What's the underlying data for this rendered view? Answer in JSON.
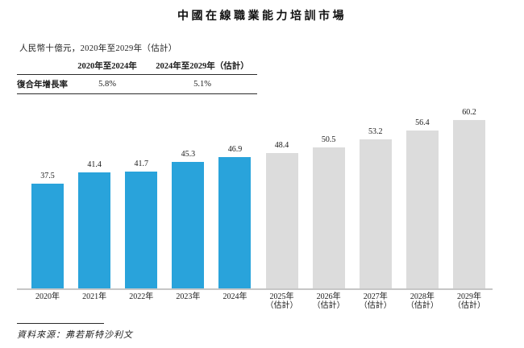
{
  "chart_data": {
    "type": "bar",
    "title": "中國在線職業能力培訓市場",
    "subtitle": "人民幣十億元，2020年至2029年（估計）",
    "source": "資料來源：弗若斯特沙利文",
    "ylabel": "人民幣十億元",
    "ylim": [
      0,
      62
    ],
    "gridlines": false,
    "legend_position": "none",
    "cagr_table": {
      "row_label": "復合年增長率",
      "columns": [
        "2020年至2024年",
        "2024年至2029年（估計）"
      ],
      "values": [
        "5.8%",
        "5.1%"
      ]
    },
    "bars": [
      {
        "label": "2020年",
        "sublabel": "",
        "value": 37.5,
        "series": "actual"
      },
      {
        "label": "2021年",
        "sublabel": "",
        "value": 41.4,
        "series": "actual"
      },
      {
        "label": "2022年",
        "sublabel": "",
        "value": 41.7,
        "series": "actual"
      },
      {
        "label": "2023年",
        "sublabel": "",
        "value": 45.3,
        "series": "actual"
      },
      {
        "label": "2024年",
        "sublabel": "",
        "value": 46.9,
        "series": "actual"
      },
      {
        "label": "2025年",
        "sublabel": "（估計）",
        "value": 48.4,
        "series": "estimate"
      },
      {
        "label": "2026年",
        "sublabel": "（估計）",
        "value": 50.5,
        "series": "estimate"
      },
      {
        "label": "2027年",
        "sublabel": "（估計）",
        "value": 53.2,
        "series": "estimate"
      },
      {
        "label": "2028年",
        "sublabel": "（估計）",
        "value": 56.4,
        "series": "estimate"
      },
      {
        "label": "2029年",
        "sublabel": "（估計）",
        "value": 60.2,
        "series": "estimate"
      }
    ],
    "colors": {
      "actual": "#29a3db",
      "estimate": "#dcdcdc",
      "axis_line": "#c6c6c6"
    }
  }
}
